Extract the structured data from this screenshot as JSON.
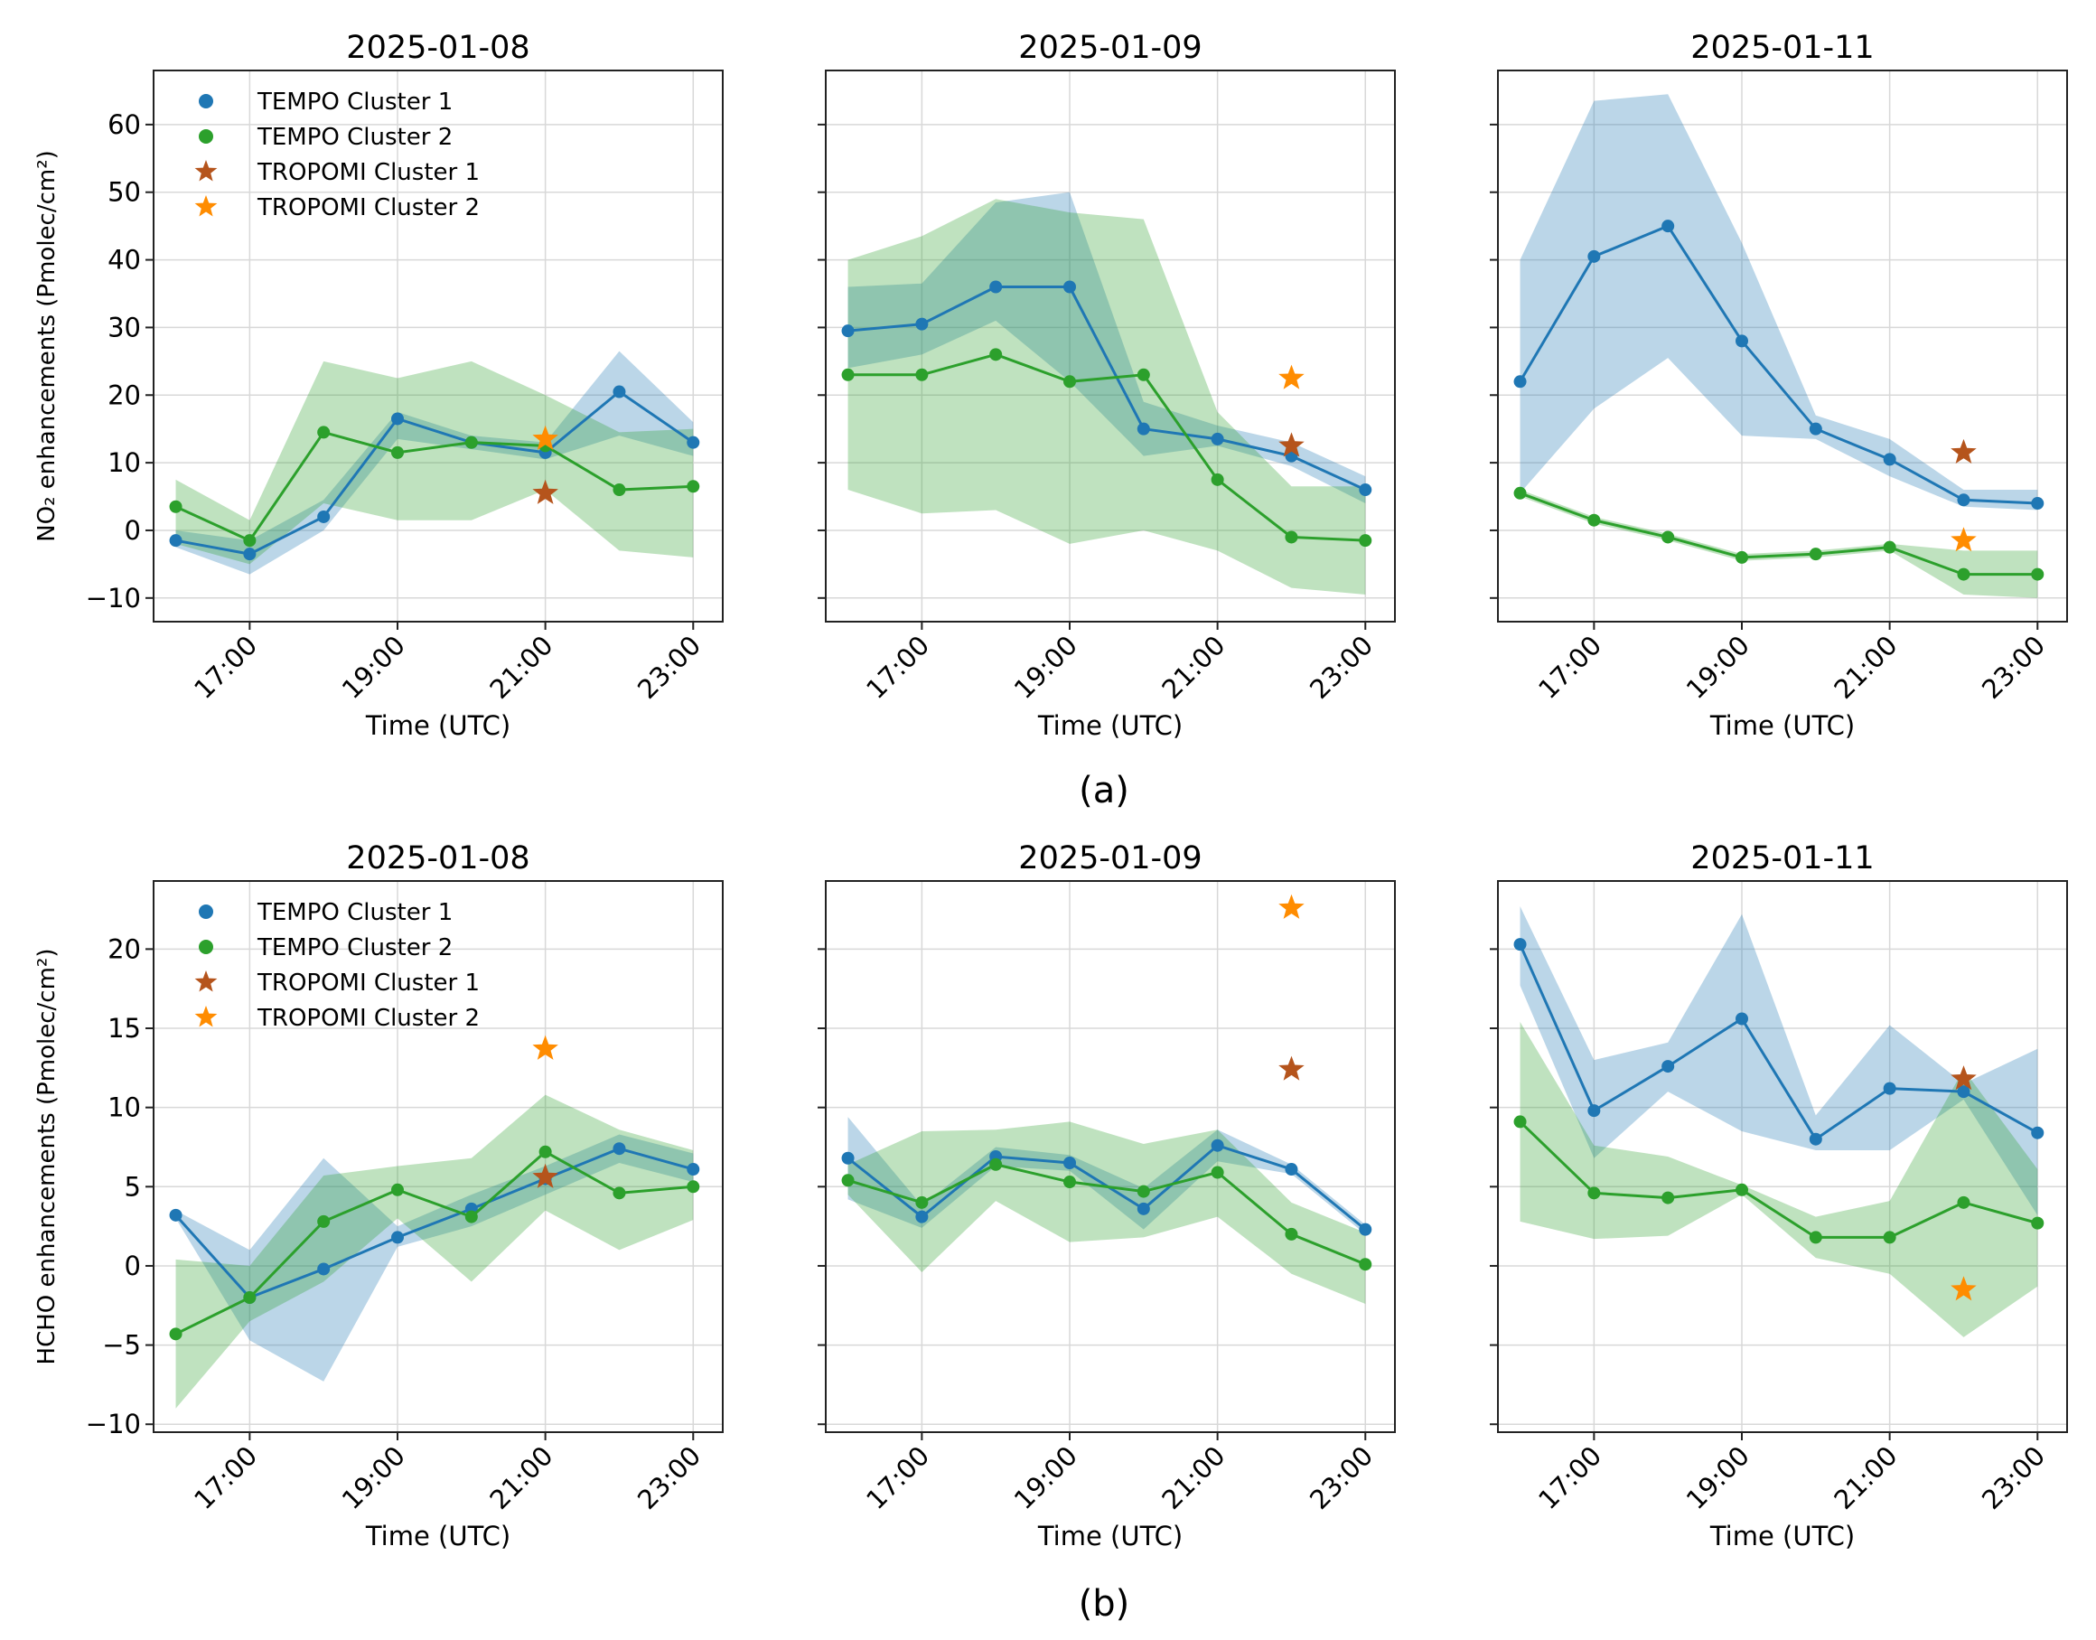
{
  "chart_data": {
    "type": "line",
    "colors": {
      "tempo_cluster_1": "#1f77b4",
      "tempo_cluster_2": "#2ca02c",
      "tropomi_cluster_1": "#b5541c",
      "tropomi_cluster_2": "#ff8c00"
    },
    "x_hours": [
      16,
      17,
      18,
      19,
      20,
      21,
      22,
      23
    ],
    "xticks": [
      "17:00",
      "19:00",
      "21:00",
      "23:00"
    ],
    "xlabel": "Time (UTC)",
    "legend": {
      "placement": "top-left",
      "entries": [
        "TEMPO Cluster 1",
        "TEMPO Cluster 2",
        "TROPOMI Cluster 1",
        "TROPOMI Cluster 2"
      ]
    },
    "rows": [
      {
        "label": "(a)",
        "ylabel": "NO₂ enhancements (Pmolec/cm²)",
        "ylim": [
          -13.5,
          68
        ],
        "yticks": [
          -10,
          0,
          10,
          20,
          30,
          40,
          50,
          60
        ],
        "ytick_labels": [
          "−10",
          "0",
          "10",
          "20",
          "30",
          "40",
          "50",
          "60"
        ],
        "panels": [
          {
            "title": "2025-01-08",
            "tempo1": [
              -1.5,
              -3.5,
              2,
              16.5,
              13,
              11.5,
              20.5,
              13
            ],
            "tempo1_low": [
              -2.5,
              -6.5,
              0,
              13.5,
              12,
              10.5,
              14,
              11
            ],
            "tempo1_high": [
              0,
              -1.5,
              4.5,
              17.5,
              14,
              13,
              26.5,
              16
            ],
            "tempo2": [
              3.5,
              -1.5,
              14.5,
              11.5,
              13,
              12.5,
              6,
              6.5
            ],
            "tempo2_low": [
              -2,
              -5,
              4,
              1.5,
              1.5,
              6,
              -3,
              -4
            ],
            "tempo2_high": [
              7.5,
              1.5,
              25,
              22.5,
              25,
              20,
              14.5,
              15
            ],
            "tropomi1": [
              {
                "x": 21,
                "y": 5.5
              }
            ],
            "tropomi2": [
              {
                "x": 21,
                "y": 13.5
              }
            ]
          },
          {
            "title": "2025-01-09",
            "tempo1": [
              29.5,
              30.5,
              36,
              36,
              15,
              13.5,
              11,
              6
            ],
            "tempo1_low": [
              24,
              26,
              31,
              22,
              11,
              12.5,
              9.5,
              4
            ],
            "tempo1_high": [
              36,
              36.5,
              48.5,
              50,
              19,
              15.5,
              13,
              8
            ],
            "tempo2": [
              23,
              23,
              26,
              22,
              23,
              7.5,
              -1,
              -1.5
            ],
            "tempo2_low": [
              6,
              2.5,
              3,
              -2,
              0,
              -3,
              -8.5,
              -9.5
            ],
            "tempo2_high": [
              40,
              43.5,
              49,
              47,
              46,
              17.5,
              6.5,
              6.5
            ],
            "tropomi1": [
              {
                "x": 22,
                "y": 12.5
              }
            ],
            "tropomi2": [
              {
                "x": 22,
                "y": 22.5
              }
            ]
          },
          {
            "title": "2025-01-11",
            "tempo1": [
              22,
              40.5,
              45,
              28,
              15,
              10.5,
              4.5,
              4
            ],
            "tempo1_low": [
              5.5,
              18,
              25.5,
              14,
              13.5,
              8,
              3.5,
              3
            ],
            "tempo1_high": [
              40,
              63.5,
              64.5,
              42.5,
              17,
              13.5,
              6,
              6
            ],
            "tempo2": [
              5.5,
              1.5,
              -1,
              -4,
              -3.5,
              -2.5,
              -6.5,
              -6.5
            ],
            "tempo2_low": [
              5,
              1,
              -1.5,
              -4.5,
              -4,
              -3,
              -9.5,
              -10
            ],
            "tempo2_high": [
              6,
              2,
              -0.5,
              -3.5,
              -3,
              -2,
              -3,
              -3
            ],
            "tropomi1": [
              {
                "x": 22,
                "y": 11.5
              }
            ],
            "tropomi2": [
              {
                "x": 22,
                "y": -1.5
              }
            ]
          }
        ]
      },
      {
        "label": "(b)",
        "ylabel": "HCHO enhancements (Pmolec/cm²)",
        "ylim": [
          -10.5,
          24.3
        ],
        "yticks": [
          -10,
          -5,
          0,
          5,
          10,
          15,
          20
        ],
        "ytick_labels": [
          "−10",
          "−5",
          "0",
          "5",
          "10",
          "15",
          "20"
        ],
        "panels": [
          {
            "title": "2025-01-08",
            "tempo1": [
              3.2,
              -2,
              -0.2,
              1.8,
              3.6,
              5.5,
              7.4,
              6.1
            ],
            "tempo1_low": [
              3,
              -4.7,
              -7.3,
              1.2,
              2.5,
              4.5,
              6.5,
              5.3
            ],
            "tempo1_high": [
              3.5,
              1,
              6.8,
              2.5,
              4.5,
              6.3,
              8.3,
              7.1
            ],
            "tempo2": [
              -4.3,
              -2,
              2.8,
              4.8,
              3.1,
              7.2,
              4.6,
              5
            ],
            "tempo2_low": [
              -9,
              -3.5,
              -1,
              3,
              -1,
              3.5,
              1,
              2.9
            ],
            "tempo2_high": [
              0.4,
              0,
              5.7,
              6.3,
              6.8,
              10.8,
              8.6,
              7.3
            ],
            "tropomi1": [
              {
                "x": 21,
                "y": 5.6
              }
            ],
            "tropomi2": [
              {
                "x": 21,
                "y": 13.7
              }
            ]
          },
          {
            "title": "2025-01-09",
            "tempo1": [
              6.8,
              3.1,
              6.9,
              6.5,
              3.6,
              7.6,
              6.1,
              2.3
            ],
            "tempo1_low": [
              4.2,
              2.4,
              6.3,
              6,
              2.3,
              6.6,
              5.8,
              2
            ],
            "tempo1_high": [
              9.4,
              3.8,
              7.5,
              7,
              4.9,
              8.6,
              6.4,
              2.6
            ],
            "tempo2": [
              5.4,
              4,
              6.4,
              5.3,
              4.7,
              5.9,
              2,
              0.1
            ],
            "tempo2_low": [
              4.5,
              -0.4,
              4.1,
              1.5,
              1.8,
              3.1,
              -0.5,
              -2.4
            ],
            "tempo2_high": [
              6.4,
              8.5,
              8.6,
              9.1,
              7.7,
              8.6,
              4,
              2.1
            ],
            "tropomi1": [
              {
                "x": 22,
                "y": 12.4
              }
            ],
            "tropomi2": [
              {
                "x": 22,
                "y": 22.6
              }
            ]
          },
          {
            "title": "2025-01-11",
            "tempo1": [
              20.3,
              9.8,
              12.6,
              15.6,
              8,
              11.2,
              11,
              8.4
            ],
            "tempo1_low": [
              17.7,
              6.8,
              11,
              8.5,
              7.3,
              7.3,
              10.5,
              3.2
            ],
            "tempo1_high": [
              22.7,
              13,
              14.1,
              22.2,
              9.5,
              15.2,
              11.5,
              13.7
            ],
            "tempo2": [
              9.1,
              4.6,
              4.3,
              4.8,
              1.8,
              1.8,
              4,
              2.7
            ],
            "tempo2_low": [
              2.8,
              1.7,
              1.9,
              4.5,
              0.5,
              -0.5,
              -4.5,
              -1.3
            ],
            "tempo2_high": [
              15.4,
              7.6,
              6.9,
              5.1,
              3.1,
              4.1,
              12.4,
              6.1
            ],
            "tropomi1": [
              {
                "x": 22,
                "y": 11.8
              }
            ],
            "tropomi2": [
              {
                "x": 22,
                "y": -1.5
              }
            ]
          }
        ]
      }
    ]
  }
}
